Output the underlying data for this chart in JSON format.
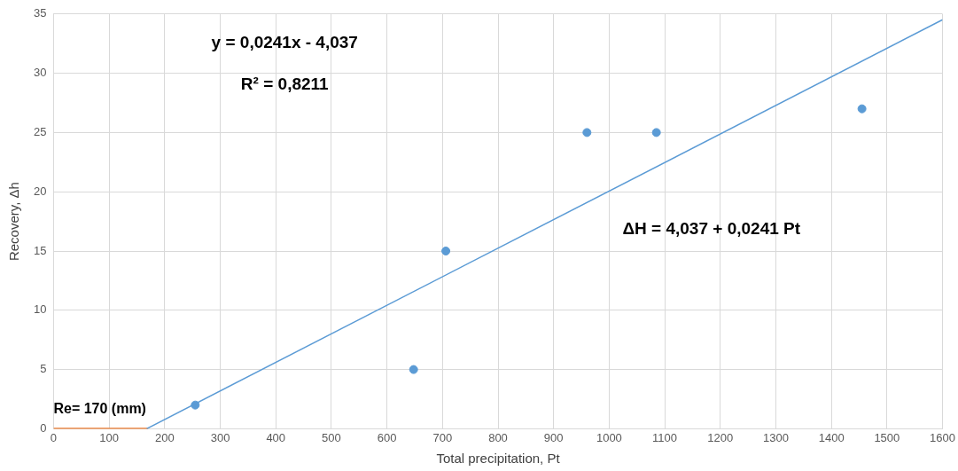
{
  "chart_data": {
    "type": "scatter",
    "xlabel": "Total precipitation, Pt",
    "ylabel": "Recovery, Δh",
    "series": [
      {
        "color": "#5b9bd5",
        "x": [
          255,
          648,
          706,
          960,
          1085,
          1455
        ],
        "values": [
          2,
          5,
          15,
          25,
          25,
          27
        ]
      },
      {
        "type": "line",
        "color": "#5b9bd5",
        "marker": "none",
        "x": [
          167.5,
          1600
        ],
        "values": [
          0,
          34.52
        ]
      },
      {
        "type": "line",
        "color": "#ed7d31",
        "marker": "none",
        "x": [
          0,
          170
        ],
        "values": [
          0,
          0
        ]
      }
    ],
    "xlim": [
      0,
      1600
    ],
    "xticks": [
      0,
      100,
      200,
      300,
      400,
      500,
      600,
      700,
      800,
      900,
      1000,
      1100,
      1200,
      1300,
      1400,
      1500,
      1600
    ],
    "ylim": [
      0,
      35
    ],
    "yticks": [
      0,
      5,
      10,
      15,
      20,
      25,
      30,
      35
    ],
    "grid": true,
    "legend": false,
    "marker": "circle",
    "annotations": [
      "y = 0,0241x - 4,037",
      "R² = 0,8211",
      "ΔH = 4,037 + 0,0241 Pt",
      {
        "text": "Re= 170 (mm)",
        "x": 0,
        "y": 0
      }
    ]
  }
}
